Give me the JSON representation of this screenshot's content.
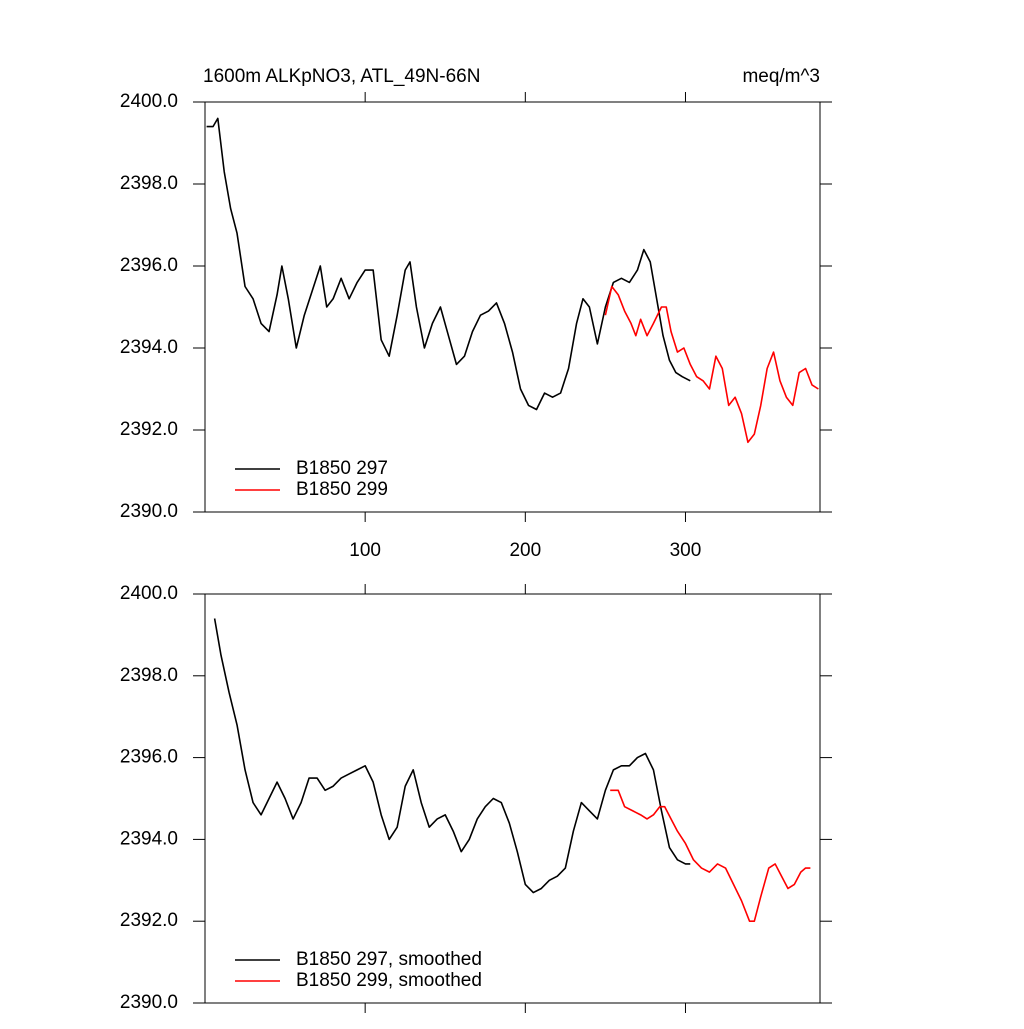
{
  "chart_data": [
    {
      "type": "line",
      "title": "1600m ALKpNO3, ATL_49N-66N",
      "right_title": "meq/m^3",
      "xlim": [
        0,
        384
      ],
      "xticks": [
        100,
        200,
        300
      ],
      "ylim": [
        2390,
        2400
      ],
      "yticks": [
        {
          "value": 2390,
          "label": "2390.0"
        },
        {
          "value": 2392,
          "label": "2392.0"
        },
        {
          "value": 2394,
          "label": "2394.0"
        },
        {
          "value": 2396,
          "label": "2396.0"
        },
        {
          "value": 2398,
          "label": "2398.0"
        },
        {
          "value": 2400,
          "label": "2400.0"
        }
      ],
      "legend": "lower left",
      "series": [
        {
          "name": "B1850 297",
          "color": "#000000",
          "x": [
            1,
            5,
            8,
            12,
            16,
            20,
            25,
            30,
            35,
            40,
            45,
            48,
            52,
            57,
            62,
            67,
            72,
            76,
            80,
            85,
            90,
            95,
            100,
            105,
            110,
            115,
            120,
            125,
            128,
            132,
            137,
            142,
            147,
            152,
            157,
            162,
            167,
            172,
            177,
            182,
            187,
            192,
            197,
            202,
            207,
            212,
            217,
            222,
            227,
            232,
            236,
            240,
            245,
            250,
            255,
            260,
            265,
            270,
            274,
            278,
            282,
            286,
            290,
            294,
            298,
            303
          ],
          "values": [
            2399.4,
            2399.4,
            2399.6,
            2398.3,
            2397.4,
            2396.8,
            2395.5,
            2395.2,
            2394.6,
            2394.4,
            2395.3,
            2396.0,
            2395.2,
            2394.0,
            2394.8,
            2395.4,
            2396.0,
            2395.0,
            2395.2,
            2395.7,
            2395.2,
            2395.6,
            2395.9,
            2395.9,
            2394.2,
            2393.8,
            2394.8,
            2395.9,
            2396.1,
            2395.0,
            2394.0,
            2394.6,
            2395.0,
            2394.3,
            2393.6,
            2393.8,
            2394.4,
            2394.8,
            2394.9,
            2395.1,
            2394.6,
            2393.9,
            2393.0,
            2392.6,
            2392.5,
            2392.9,
            2392.8,
            2392.9,
            2393.5,
            2394.6,
            2395.2,
            2395.0,
            2394.1,
            2395.0,
            2395.6,
            2395.7,
            2395.6,
            2395.9,
            2396.4,
            2396.1,
            2395.2,
            2394.3,
            2393.7,
            2393.4,
            2393.3,
            2393.2
          ]
        },
        {
          "name": "B1850 299",
          "color": "#ff0000",
          "x": [
            250,
            254,
            258,
            262,
            266,
            269,
            272,
            276,
            280,
            285,
            288,
            291,
            295,
            299,
            303,
            307,
            311,
            315,
            319,
            323,
            327,
            331,
            335,
            339,
            343,
            347,
            351,
            355,
            359,
            363,
            367,
            371,
            375,
            379,
            383
          ],
          "values": [
            2394.8,
            2395.5,
            2395.3,
            2394.9,
            2394.6,
            2394.3,
            2394.7,
            2394.3,
            2394.6,
            2395.0,
            2395.0,
            2394.4,
            2393.9,
            2394.0,
            2393.6,
            2393.3,
            2393.2,
            2393.0,
            2393.8,
            2393.5,
            2392.6,
            2392.8,
            2392.4,
            2391.7,
            2391.9,
            2392.6,
            2393.5,
            2393.9,
            2393.2,
            2392.8,
            2392.6,
            2393.4,
            2393.5,
            2393.1,
            2393.0
          ]
        }
      ]
    },
    {
      "type": "line",
      "xlim": [
        0,
        384
      ],
      "xticks": [
        100,
        200,
        300
      ],
      "ylim": [
        2390,
        2400
      ],
      "yticks": [
        {
          "value": 2390,
          "label": "2390.0"
        },
        {
          "value": 2392,
          "label": "2392.0"
        },
        {
          "value": 2394,
          "label": "2394.0"
        },
        {
          "value": 2396,
          "label": "2396.0"
        },
        {
          "value": 2398,
          "label": "2398.0"
        },
        {
          "value": 2400,
          "label": "2400.0"
        }
      ],
      "legend": "lower left",
      "series": [
        {
          "name": "B1850 297, smoothed",
          "color": "#000000",
          "x": [
            6,
            10,
            15,
            20,
            25,
            30,
            35,
            40,
            45,
            50,
            55,
            60,
            65,
            70,
            75,
            80,
            85,
            90,
            95,
            100,
            105,
            110,
            115,
            120,
            125,
            130,
            135,
            140,
            145,
            150,
            155,
            160,
            165,
            170,
            175,
            180,
            185,
            190,
            195,
            200,
            205,
            210,
            215,
            220,
            225,
            230,
            235,
            240,
            245,
            250,
            255,
            260,
            265,
            270,
            275,
            280,
            285,
            290,
            295,
            300,
            303
          ],
          "values": [
            2399.4,
            2398.5,
            2397.6,
            2396.8,
            2395.7,
            2394.9,
            2394.6,
            2395.0,
            2395.4,
            2395.0,
            2394.5,
            2394.9,
            2395.5,
            2395.5,
            2395.2,
            2395.3,
            2395.5,
            2395.6,
            2395.7,
            2395.8,
            2395.4,
            2394.6,
            2394.0,
            2394.3,
            2395.3,
            2395.7,
            2394.9,
            2394.3,
            2394.5,
            2394.6,
            2394.2,
            2393.7,
            2394.0,
            2394.5,
            2394.8,
            2395.0,
            2394.9,
            2394.4,
            2393.7,
            2392.9,
            2392.7,
            2392.8,
            2393.0,
            2393.1,
            2393.3,
            2394.2,
            2394.9,
            2394.7,
            2394.5,
            2395.2,
            2395.7,
            2395.8,
            2395.8,
            2396.0,
            2396.1,
            2395.7,
            2394.7,
            2393.8,
            2393.5,
            2393.4,
            2393.4
          ]
        },
        {
          "name": "B1850 299, smoothed",
          "color": "#ff0000",
          "x": [
            253,
            258,
            262,
            267,
            272,
            276,
            280,
            284,
            287,
            291,
            295,
            300,
            305,
            310,
            315,
            320,
            325,
            330,
            335,
            340,
            343,
            347,
            352,
            356,
            360,
            364,
            368,
            372,
            375,
            378
          ],
          "values": [
            2395.2,
            2395.2,
            2394.8,
            2394.7,
            2394.6,
            2394.5,
            2394.6,
            2394.8,
            2394.8,
            2394.5,
            2394.2,
            2393.9,
            2393.5,
            2393.3,
            2393.2,
            2393.4,
            2393.3,
            2392.9,
            2392.5,
            2392.0,
            2392.0,
            2392.6,
            2393.3,
            2393.4,
            2393.1,
            2392.8,
            2392.9,
            2393.2,
            2393.3,
            2393.3
          ]
        }
      ]
    }
  ]
}
